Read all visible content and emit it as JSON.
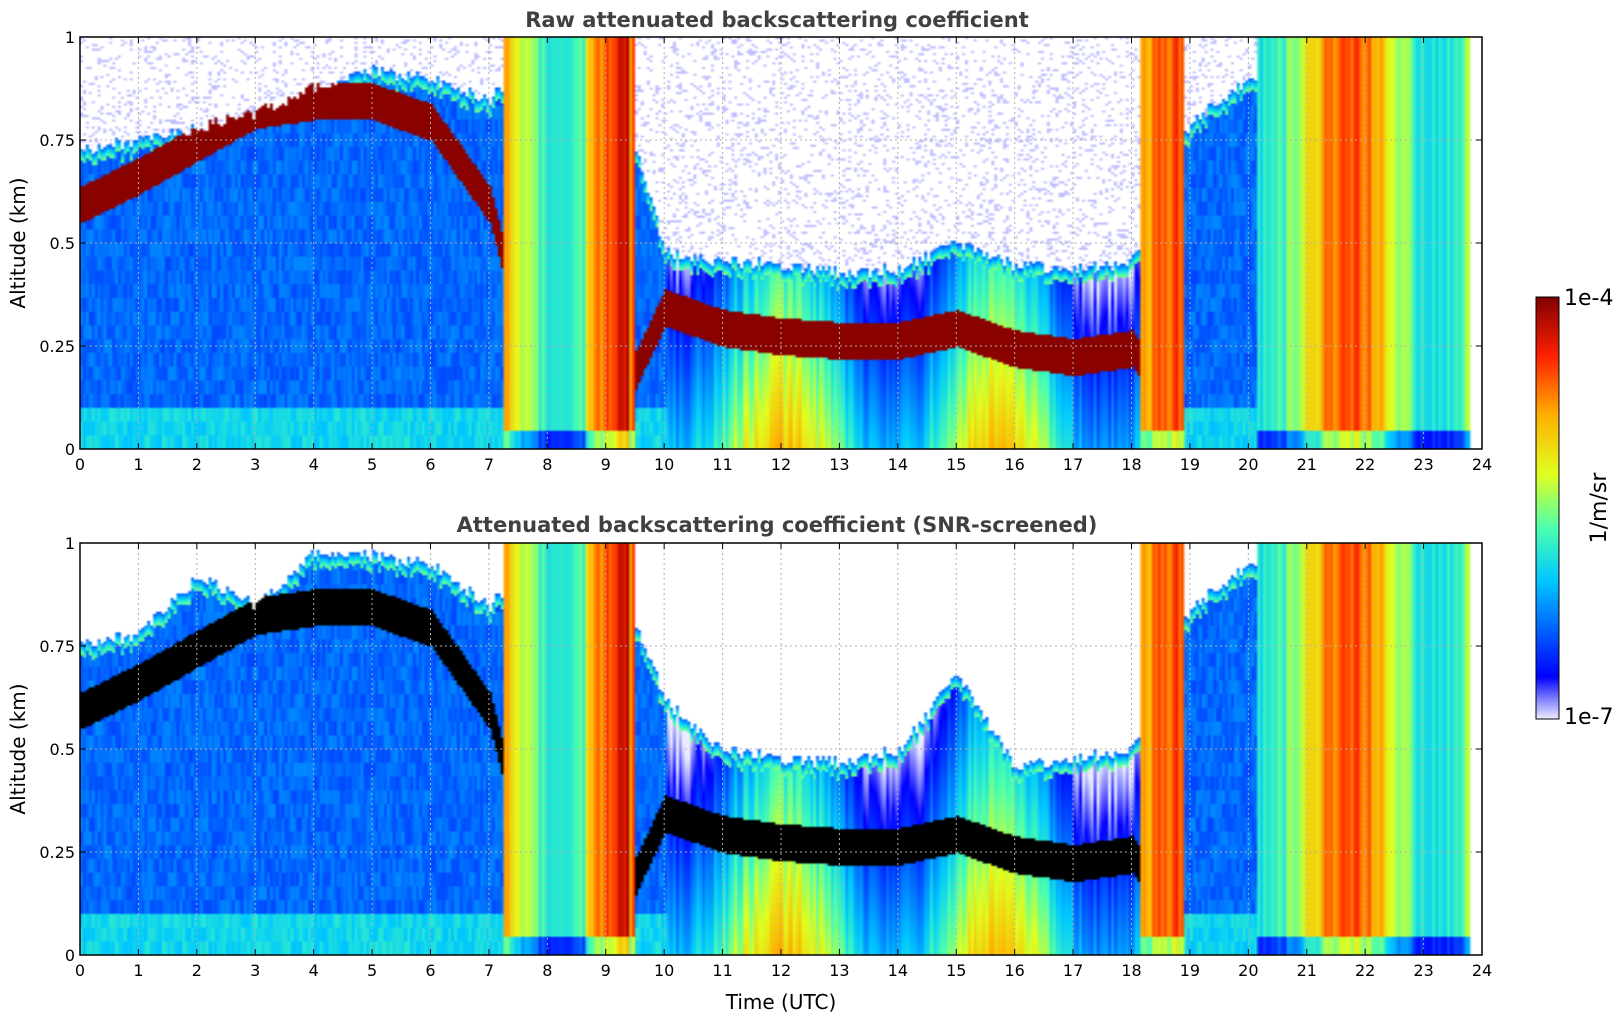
{
  "chart_data": [
    {
      "type": "heatmap",
      "title": "Raw attenuated backscattering coefficient",
      "xlabel": "",
      "ylabel": "Altitude (km)",
      "xlim": [
        0,
        24
      ],
      "ylim": [
        0,
        1
      ],
      "xticks": [
        "0",
        "1",
        "2",
        "3",
        "4",
        "5",
        "6",
        "7",
        "8",
        "9",
        "10",
        "11",
        "12",
        "13",
        "14",
        "15",
        "16",
        "17",
        "18",
        "19",
        "20",
        "21",
        "22",
        "23",
        "24"
      ],
      "yticks": [
        "0",
        "0.25",
        "0.5",
        "0.75",
        "1"
      ],
      "grid": true,
      "colorscale": "jet (log scale, 1e-7 to 1e-4 1/m/sr)",
      "features": {
        "fog_layer_top_km_by_hour": [
          0.73,
          0.75,
          0.78,
          0.82,
          0.88,
          0.92,
          0.9,
          0.85,
          1.0,
          1.0,
          0.48,
          0.46,
          0.45,
          0.43,
          0.44,
          0.5,
          0.45,
          0.44,
          0.46,
          0.8,
          0.9,
          1.0,
          1.0,
          1.0,
          1.0
        ],
        "cloud_base_km_by_hour": [
          0.55,
          0.62,
          0.7,
          0.78,
          0.8,
          0.8,
          0.75,
          0.55,
          0.0,
          0.0,
          0.3,
          0.25,
          0.23,
          0.22,
          0.22,
          0.25,
          0.2,
          0.18,
          0.2,
          0.0,
          0.0,
          0.0,
          0.0,
          0.0,
          0.0
        ],
        "precipitation_hours_utc": [
          7.3,
          7.4,
          7.5,
          7.6,
          7.7,
          7.8,
          7.9,
          8.0,
          8.1,
          8.2,
          8.3,
          8.4,
          8.5,
          8.6,
          8.7,
          8.8,
          8.9,
          9.0,
          9.1,
          9.2,
          9.3,
          9.4,
          18.2,
          18.4,
          18.6,
          18.8,
          20.2,
          20.4,
          20.6,
          20.8,
          21.0,
          21.5,
          22.0,
          22.5,
          23.0,
          23.5
        ]
      }
    },
    {
      "type": "heatmap",
      "title": "Attenuated backscattering coefficient (SNR-screened)",
      "xlabel": "Time (UTC)",
      "ylabel": "Altitude (km)",
      "xlim": [
        0,
        24
      ],
      "ylim": [
        0,
        1
      ],
      "xticks": [
        "0",
        "1",
        "2",
        "3",
        "4",
        "5",
        "6",
        "7",
        "8",
        "9",
        "10",
        "11",
        "12",
        "13",
        "14",
        "15",
        "16",
        "17",
        "18",
        "19",
        "20",
        "21",
        "22",
        "23",
        "24"
      ],
      "yticks": [
        "0",
        "0.25",
        "0.5",
        "0.75",
        "1"
      ],
      "grid": true,
      "colorscale": "jet (log scale, 1e-7 to 1e-4 1/m/sr); saturated values in black",
      "features": {
        "fog_layer_top_km_by_hour": [
          0.76,
          0.78,
          0.92,
          0.85,
          0.98,
          0.97,
          0.95,
          0.85,
          1.0,
          1.0,
          0.62,
          0.5,
          0.48,
          0.47,
          0.5,
          0.68,
          0.46,
          0.48,
          0.5,
          0.85,
          0.95,
          1.0,
          1.0,
          1.0,
          1.0
        ],
        "cloud_base_km_by_hour": [
          0.55,
          0.62,
          0.7,
          0.78,
          0.8,
          0.8,
          0.75,
          0.55,
          0.0,
          0.0,
          0.3,
          0.25,
          0.23,
          0.22,
          0.22,
          0.25,
          0.2,
          0.18,
          0.2,
          0.0,
          0.0,
          0.0,
          0.0,
          0.0,
          0.0
        ]
      }
    }
  ],
  "colorbar": {
    "label": "1/m/sr",
    "top_label": "1e-4",
    "bottom_label": "1e-7",
    "min": 1e-07,
    "max": 0.0001,
    "colormap": "jet"
  }
}
